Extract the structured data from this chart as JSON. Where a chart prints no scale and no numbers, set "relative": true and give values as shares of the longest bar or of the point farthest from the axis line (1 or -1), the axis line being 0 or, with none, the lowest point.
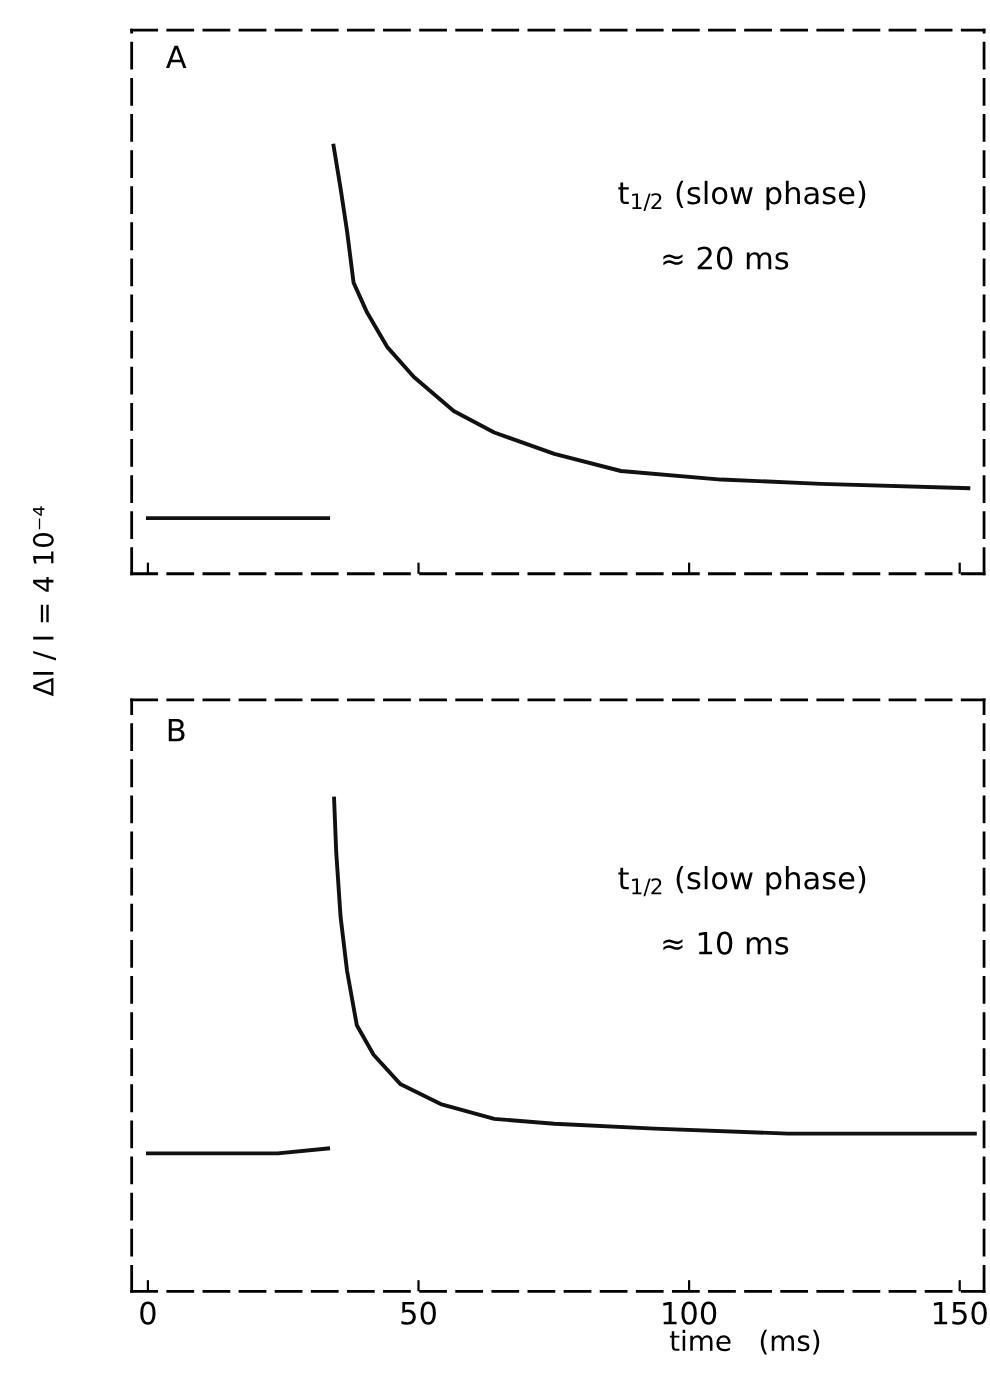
{
  "chart_data": [
    {
      "type": "line",
      "relative": true,
      "ylabel": "ΔI / I = 4 10⁻⁴",
      "xlim": [
        -3,
        154.5
      ],
      "xticks": [
        0,
        50,
        100,
        150
      ],
      "tick_labels": false,
      "marker": "none",
      "line_style": "solid",
      "annotations": [
        "A",
        "t$_{1/2}$ (slow phase)",
        "≈ 20 ms"
      ],
      "series": [
        {
          "color": "#111111",
          "x": [
            0,
            8,
            16,
            24,
            33.3
          ],
          "values": [
            0.13,
            0.13,
            0.13,
            0.13,
            0.13
          ]
        },
        {
          "color": "#111111",
          "x": [
            34.3,
            35.6,
            36.8,
            38.0,
            40.5,
            44.2,
            49.1,
            56.5,
            64.0,
            75.1,
            87.4,
            105.9,
            124.4,
            151.6
          ],
          "values": [
            1,
            0.9,
            0.8,
            0.68,
            0.61,
            0.53,
            0.46,
            0.38,
            0.33,
            0.28,
            0.24,
            0.22,
            0.21,
            0.2
          ]
        }
      ]
    },
    {
      "type": "line",
      "relative": true,
      "xlabel": "time   (ms)",
      "xlim": [
        -3,
        154.5
      ],
      "xticks": [
        0,
        50,
        100,
        150
      ],
      "tick_labels": "x",
      "marker": "none",
      "line_style": "solid",
      "annotations": [
        "B",
        "t$_{1/2}$ (slow phase)",
        "≈ 10 ms"
      ],
      "series": [
        {
          "color": "#111111",
          "x": [
            0,
            8,
            16,
            24,
            33.3
          ],
          "values": [
            0.28,
            0.28,
            0.28,
            0.28,
            0.29
          ]
        },
        {
          "color": "#111111",
          "x": [
            34.4,
            34.8,
            35.6,
            36.8,
            38.6,
            41.7,
            46.7,
            54.1,
            64.0,
            75.1,
            93.6,
            118.3,
            152.8
          ],
          "values": [
            1,
            0.89,
            0.76,
            0.65,
            0.54,
            0.48,
            0.42,
            0.38,
            0.35,
            0.34,
            0.33,
            0.32,
            0.32
          ]
        }
      ]
    }
  ]
}
